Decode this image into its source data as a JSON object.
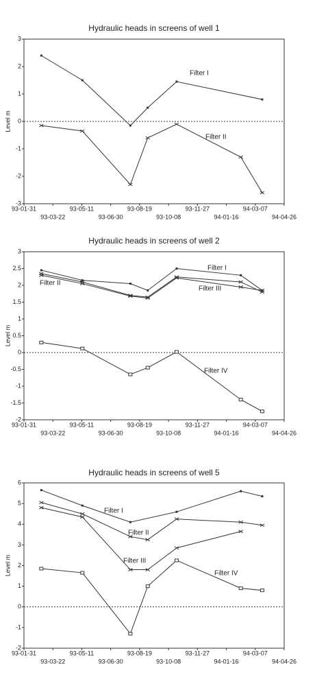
{
  "chart_data": [
    {
      "type": "line",
      "title": "Hydraulic heads in screens of well 1",
      "y_label": "Level m",
      "xlim": [
        "93-01-31",
        "94-04-26"
      ],
      "xticks": [
        "93-01-31",
        "93-03-22",
        "93-05-11",
        "93-06-30",
        "93-08-19",
        "93-10-08",
        "93-11-27",
        "94-01-16",
        "94-03-07",
        "94-04-26"
      ],
      "ylim": [
        -3,
        3
      ],
      "yticks": [
        -3,
        -2,
        -1,
        0,
        1,
        2,
        3
      ],
      "series": [
        {
          "name": "Filter I",
          "color": "#333333",
          "marker": "square",
          "x": [
            "93-03-02",
            "93-05-12",
            "93-08-03",
            "93-09-02",
            "93-10-22",
            "94-03-19"
          ],
          "values": [
            2.4,
            1.5,
            -0.15,
            0.5,
            1.45,
            0.8
          ]
        },
        {
          "name": "Filter II",
          "color": "#333333",
          "marker": "x",
          "x": [
            "93-03-02",
            "93-05-12",
            "93-08-03",
            "93-09-02",
            "93-10-22",
            "94-02-10",
            "94-03-19"
          ],
          "values": [
            -0.15,
            -0.35,
            -2.3,
            -0.6,
            -0.1,
            -1.3,
            -2.6
          ]
        }
      ]
    },
    {
      "type": "line",
      "title": "Hydraulic heads in screens of well 2",
      "y_label": "Level m",
      "xlim": [
        "93-01-31",
        "94-04-26"
      ],
      "xticks": [
        "93-01-31",
        "93-03-22",
        "93-05-11",
        "93-06-30",
        "93-08-19",
        "93-10-08",
        "93-11-27",
        "94-01-16",
        "94-03-07",
        "94-04-26"
      ],
      "ylim": [
        -2,
        3
      ],
      "yticks": [
        -2,
        -1.5,
        -1,
        -0.5,
        0,
        0.5,
        1,
        1.5,
        2,
        2.5,
        3
      ],
      "series": [
        {
          "name": "Filter I",
          "color": "#333333",
          "marker": "square",
          "x": [
            "93-03-02",
            "93-05-12",
            "93-08-03",
            "93-09-02",
            "93-10-22",
            "94-02-10",
            "94-03-19"
          ],
          "values": [
            2.45,
            2.15,
            2.05,
            1.85,
            2.5,
            2.3,
            1.85
          ]
        },
        {
          "name": "Filter II",
          "color": "#333333",
          "marker": "x",
          "x": [
            "93-03-02",
            "93-05-12",
            "93-08-03",
            "93-09-02",
            "93-10-22",
            "94-02-10",
            "94-03-19"
          ],
          "values": [
            2.35,
            2.1,
            1.7,
            1.65,
            2.25,
            2.1,
            1.8
          ]
        },
        {
          "name": "Filter III",
          "color": "#333333",
          "marker": "x",
          "x": [
            "93-03-02",
            "93-05-12",
            "93-08-03",
            "93-09-02",
            "93-10-22",
            "94-02-10",
            "94-03-19"
          ],
          "values": [
            2.3,
            2.05,
            1.68,
            1.62,
            2.22,
            1.95,
            1.85
          ]
        },
        {
          "name": "Filter IV",
          "color": "#333333",
          "marker": "open-square",
          "x": [
            "93-03-02",
            "93-05-12",
            "93-08-03",
            "93-09-02",
            "93-10-22",
            "94-02-10",
            "94-03-19"
          ],
          "values": [
            0.3,
            0.12,
            -0.65,
            -0.45,
            0.02,
            -1.4,
            -1.75
          ]
        }
      ]
    },
    {
      "type": "line",
      "title": "Hydraulic heads in screens of well 5",
      "y_label": "Level m",
      "xlim": [
        "93-01-31",
        "94-04-26"
      ],
      "xticks": [
        "93-01-31",
        "93-03-22",
        "93-05-11",
        "93-06-30",
        "93-08-19",
        "93-10-08",
        "93-11-27",
        "94-01-16",
        "94-03-07",
        "94-04-26"
      ],
      "ylim": [
        -2,
        6
      ],
      "yticks": [
        -2,
        -1,
        0,
        1,
        2,
        3,
        4,
        5,
        6
      ],
      "series": [
        {
          "name": "Filter I",
          "color": "#333333",
          "marker": "square",
          "x": [
            "93-03-02",
            "93-05-12",
            "93-08-03",
            "93-10-22",
            "94-02-10",
            "94-03-19"
          ],
          "values": [
            5.65,
            4.9,
            4.1,
            4.6,
            5.6,
            5.35
          ]
        },
        {
          "name": "Filter II",
          "color": "#333333",
          "marker": "x",
          "x": [
            "93-03-02",
            "93-05-12",
            "93-08-03",
            "93-09-02",
            "93-10-22",
            "94-02-10",
            "94-03-19"
          ],
          "values": [
            5.05,
            4.5,
            3.4,
            3.25,
            4.25,
            4.1,
            3.95
          ]
        },
        {
          "name": "Filter III",
          "color": "#333333",
          "marker": "x",
          "x": [
            "93-03-02",
            "93-05-12",
            "93-08-03",
            "93-09-02",
            "93-10-22",
            "94-02-10"
          ],
          "values": [
            4.8,
            4.35,
            1.8,
            1.8,
            2.85,
            3.65
          ]
        },
        {
          "name": "Filter IV",
          "color": "#333333",
          "marker": "open-square",
          "x": [
            "93-03-02",
            "93-05-12",
            "93-08-03",
            "93-09-02",
            "93-10-22",
            "94-02-10",
            "94-03-19"
          ],
          "values": [
            1.85,
            1.65,
            -1.3,
            1.0,
            2.25,
            0.9,
            0.8
          ]
        }
      ]
    }
  ]
}
